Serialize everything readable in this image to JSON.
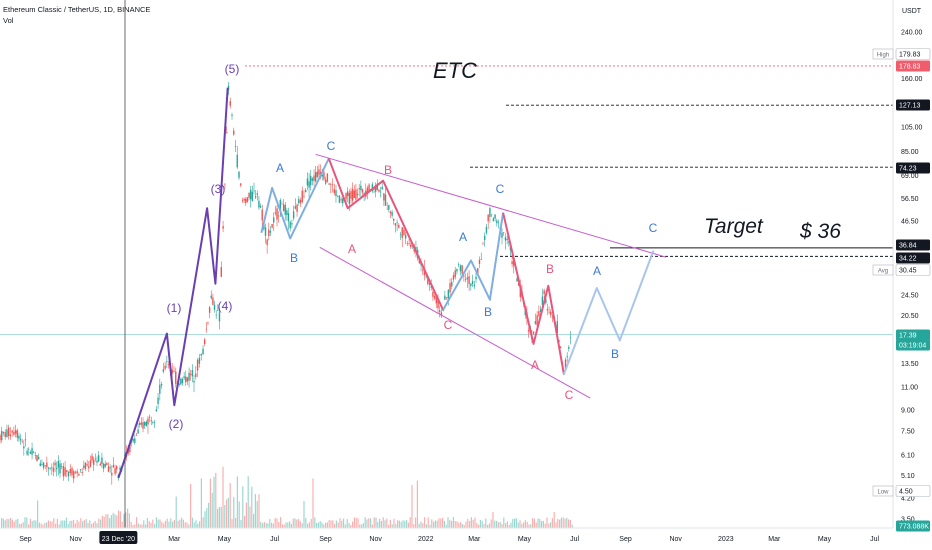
{
  "header": {
    "title": "Ethereum Classic / TetherUS, 1D, BINANCE",
    "volume_label": "Vol"
  },
  "chart_data": {
    "type": "line",
    "currency": "USDT",
    "price_scale": "log",
    "ylim": [
      3.5,
      300
    ],
    "y_ticks": [
      "240.00",
      "160.00",
      "105.00",
      "85.00",
      "69.00",
      "56.50",
      "46.50",
      "24.50",
      "20.50",
      "13.50",
      "11.00",
      "9.00",
      "7.50",
      "6.10",
      "5.10",
      "4.20",
      "3.50"
    ],
    "price_labels": [
      {
        "label": "High",
        "value": "179.83"
      },
      {
        "label": "",
        "value": "178.83"
      },
      {
        "label": "",
        "value": "127.13"
      },
      {
        "label": "",
        "value": "74.23"
      },
      {
        "label": "",
        "value": "36.84"
      },
      {
        "label": "",
        "value": "34.22"
      },
      {
        "label": "Avg",
        "value": "30.45"
      },
      {
        "label": "",
        "value": "17.39"
      },
      {
        "label": "",
        "value": "03:19:04"
      },
      {
        "label": "Low",
        "value": "4.50"
      },
      {
        "label": "",
        "value": "773.088K"
      }
    ],
    "x_ticks": [
      "Sep",
      "Nov",
      "23 Dec '20",
      "Mar",
      "May",
      "Jul",
      "Sep",
      "Nov",
      "2022",
      "Mar",
      "May",
      "Jul",
      "Sep",
      "Nov",
      "2023",
      "Mar",
      "May",
      "Jul"
    ],
    "annotations": {
      "symbol": "ETC",
      "target_label": "Target",
      "target_value": "$ 36",
      "impulse_labels": [
        "(1)",
        "(2)",
        "(3)",
        "(4)",
        "(5)"
      ],
      "abc_labels": [
        "A",
        "B",
        "C"
      ]
    },
    "series": [
      {
        "name": "",
        "color": "#26a69a",
        "values": [
          [
            "2020-08-01",
            7.2
          ],
          [
            "2020-08-20",
            7.6
          ],
          [
            "2020-09-05",
            6.3
          ],
          [
            "2020-09-25",
            5.6
          ],
          [
            "2020-10-15",
            5.4
          ],
          [
            "2020-11-05",
            5.2
          ],
          [
            "2020-11-25",
            5.9
          ],
          [
            "2020-12-23",
            5.3
          ],
          [
            "2021-01-10",
            6.9
          ],
          [
            "2021-01-20",
            7.8
          ],
          [
            "2021-02-05",
            8.7
          ],
          [
            "2021-02-20",
            14.0
          ],
          [
            "2021-03-05",
            11.5
          ],
          [
            "2021-03-25",
            12.3
          ],
          [
            "2021-04-05",
            15.0
          ],
          [
            "2021-04-15",
            24.0
          ],
          [
            "2021-04-25",
            20.0
          ],
          [
            "2021-05-06",
            145.0
          ],
          [
            "2021-05-23",
            55.0
          ],
          [
            "2021-06-10",
            60.0
          ],
          [
            "2021-06-22",
            40.0
          ],
          [
            "2021-07-10",
            55.0
          ],
          [
            "2021-07-20",
            45.0
          ],
          [
            "2021-08-10",
            65.0
          ],
          [
            "2021-08-28",
            72.0
          ],
          [
            "2021-09-20",
            55.0
          ],
          [
            "2021-10-10",
            60.0
          ],
          [
            "2021-11-05",
            63.0
          ],
          [
            "2021-11-25",
            46.0
          ],
          [
            "2021-12-20",
            36.0
          ],
          [
            "2022-01-20",
            21.0
          ],
          [
            "2022-02-10",
            32.0
          ],
          [
            "2022-03-01",
            26.0
          ],
          [
            "2022-03-20",
            50.0
          ],
          [
            "2022-04-10",
            40.0
          ],
          [
            "2022-05-10",
            17.0
          ],
          [
            "2022-05-25",
            24.0
          ],
          [
            "2022-06-10",
            18.5
          ],
          [
            "2022-06-18",
            12.5
          ],
          [
            "2022-06-28",
            17.39
          ]
        ]
      }
    ],
    "wave_paths": [
      {
        "color": "#6a3fb0",
        "points": [
          [
            "2020-12-23",
            5.0
          ],
          [
            "2021-02-20",
            17.5
          ],
          [
            "2021-03-01",
            9.4
          ],
          [
            "2021-04-10",
            52.0
          ],
          [
            "2021-04-20",
            27.0
          ],
          [
            "2021-05-05",
            148.0
          ]
        ]
      },
      {
        "color": "#7faee0",
        "points": [
          [
            "2021-06-15",
            42.0
          ],
          [
            "2021-06-28",
            62.0
          ],
          [
            "2021-07-20",
            40.0
          ],
          [
            "2021-09-05",
            80.0
          ]
        ]
      },
      {
        "color": "#e8557d",
        "points": [
          [
            "2021-09-05",
            80.0
          ],
          [
            "2021-09-28",
            52.0
          ],
          [
            "2021-11-10",
            66.0
          ],
          [
            "2022-01-22",
            21.5
          ]
        ]
      },
      {
        "color": "#7faee0",
        "points": [
          [
            "2022-01-22",
            21.5
          ],
          [
            "2022-02-25",
            33.0
          ],
          [
            "2022-03-20",
            23.5
          ],
          [
            "2022-04-05",
            50.0
          ]
        ]
      },
      {
        "color": "#e8557d",
        "points": [
          [
            "2022-04-05",
            50.0
          ],
          [
            "2022-05-12",
            16.0
          ],
          [
            "2022-05-30",
            26.5
          ],
          [
            "2022-06-18",
            12.3
          ]
        ]
      },
      {
        "color": "#a9c5ee",
        "points": [
          [
            "2022-06-18",
            12.3
          ],
          [
            "2022-07-28",
            26.0
          ],
          [
            "2022-08-25",
            16.5
          ],
          [
            "2022-10-05",
            36.0
          ]
        ]
      }
    ],
    "trendlines": [
      {
        "color": "#c75bd0",
        "from": [
          "2021-08-20",
          83.0
        ],
        "to": [
          "2022-10-20",
          34.0
        ]
      },
      {
        "color": "#c75bd0",
        "from": [
          "2021-08-25",
          37.0
        ],
        "to": [
          "2022-07-20",
          10.0
        ]
      }
    ],
    "levels": [
      {
        "value": 178.83,
        "color": "#f05c6b",
        "style": "dotted"
      },
      {
        "value": 127.13,
        "color": "#131722",
        "style": "dashed"
      },
      {
        "value": 74.23,
        "color": "#131722",
        "style": "dashed"
      },
      {
        "value": 36.84,
        "color": "#131722",
        "style": "solid"
      },
      {
        "value": 34.22,
        "color": "#131722",
        "style": "dashed"
      },
      {
        "value": 17.39,
        "color": "#26a69a",
        "style": "solid"
      }
    ]
  }
}
